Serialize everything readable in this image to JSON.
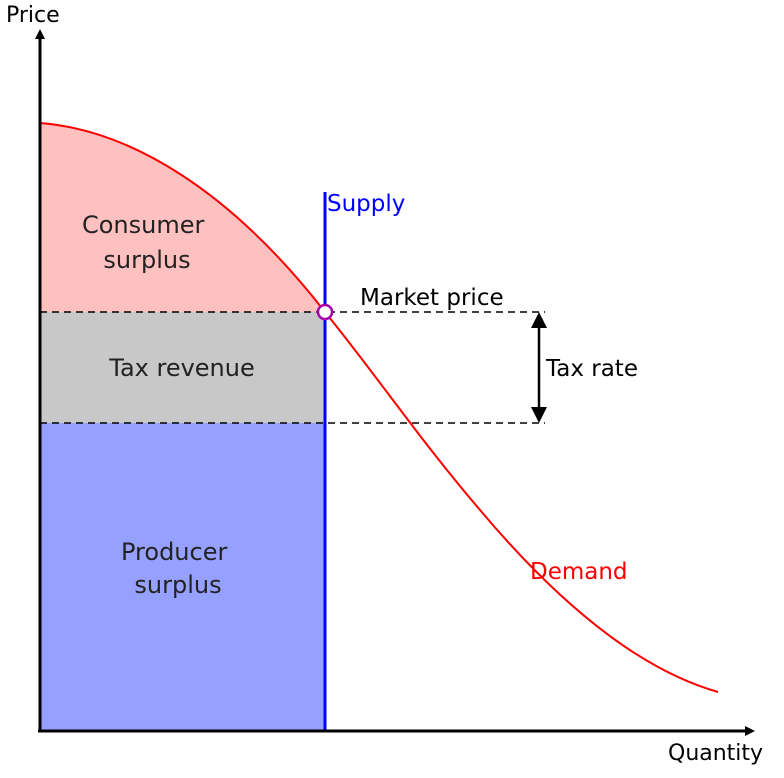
{
  "axes": {
    "y_label": "Price",
    "x_label": "Quantity"
  },
  "regions": {
    "consumer_surplus": {
      "line1": "Consumer",
      "line2": "surplus",
      "fill": "#ffc0c0"
    },
    "tax_revenue": {
      "label": "Tax revenue",
      "fill": "#c8c8c8"
    },
    "producer_surplus": {
      "line1": "Producer",
      "line2": "surplus",
      "fill": "#96a0ff"
    }
  },
  "curves": {
    "supply": {
      "label": "Supply",
      "color": "#0000ff"
    },
    "demand": {
      "label": "Demand",
      "color": "#ff0000"
    }
  },
  "annotations": {
    "market_price": "Market price",
    "tax_rate": "Tax rate"
  },
  "colors": {
    "equilibrium_point": "#aa00aa",
    "axes": "#000000"
  }
}
